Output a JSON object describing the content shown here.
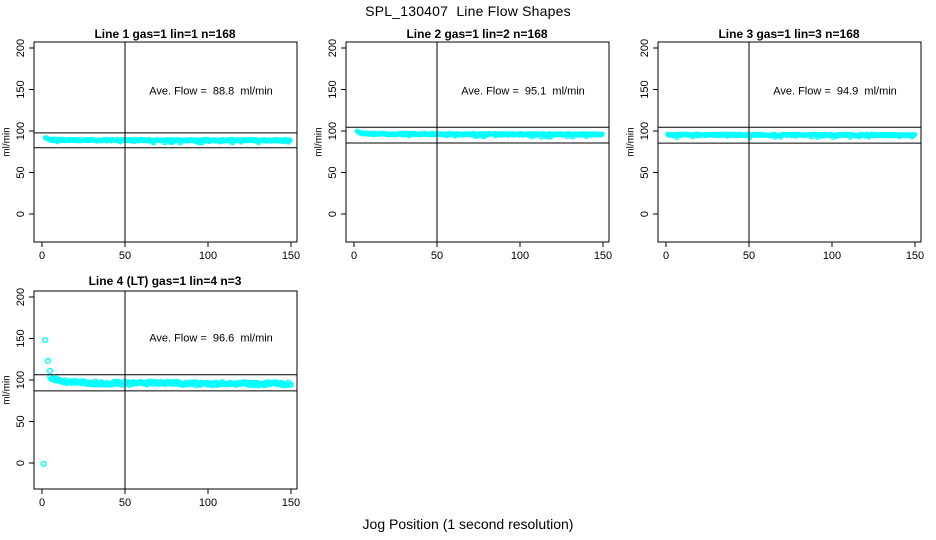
{
  "figure": {
    "title": "SPL_130407  Line Flow Shapes",
    "xlabel": "Jog Position (1 second resolution)",
    "background_color": "#FFFFFF",
    "axis_color": "#000000",
    "point_color": "#00FFFF"
  },
  "chart_data": [
    {
      "type": "scatter",
      "title": "Line 1 gas=1 lin=1 n=168",
      "annotation": "Ave. Flow =  88.8  ml/min",
      "avg_flow_ml_min": 88.8,
      "n_jogs": 168,
      "ylabel": "ml/min",
      "xlabel": "",
      "xticks": [
        0,
        50,
        100,
        150
      ],
      "yticks": [
        0,
        50,
        100,
        150,
        200
      ],
      "xlim": [
        -5,
        154
      ],
      "ylim": [
        -32,
        208
      ],
      "grid": false,
      "legend": "none",
      "marker": "open-circle",
      "ref_hlines": [
        97.7,
        79.9
      ],
      "ref_vline": 50,
      "series": {
        "name": "flow-samples",
        "x_start": 2,
        "x_end": 150,
        "x_step": 0.4,
        "profile": [
          [
            2,
            92.5
          ],
          [
            3,
            91.0
          ],
          [
            5,
            89.8
          ],
          [
            10,
            89.2
          ],
          [
            30,
            88.9
          ],
          [
            150,
            88.7
          ]
        ],
        "jitter": 1.1,
        "marker_r": 1.8,
        "seed": 101,
        "low_tick_rate": 0.04,
        "low_tick_drop": 2.5,
        "outliers": []
      }
    },
    {
      "type": "scatter",
      "title": "Line 2 gas=1 lin=2 n=168",
      "annotation": "Ave. Flow =  95.1  ml/min",
      "avg_flow_ml_min": 95.1,
      "n_jogs": 168,
      "ylabel": "ml/min",
      "xlabel": "",
      "xticks": [
        0,
        50,
        100,
        150
      ],
      "yticks": [
        0,
        50,
        100,
        150,
        200
      ],
      "xlim": [
        -5,
        154
      ],
      "ylim": [
        -32,
        208
      ],
      "grid": false,
      "legend": "none",
      "marker": "open-circle",
      "ref_hlines": [
        104.6,
        85.6
      ],
      "ref_vline": 50,
      "series": {
        "name": "flow-samples",
        "x_start": 2,
        "x_end": 150,
        "x_step": 0.4,
        "profile": [
          [
            2,
            100.5
          ],
          [
            3,
            98.5
          ],
          [
            5,
            97.2
          ],
          [
            12,
            96.3
          ],
          [
            150,
            95.8
          ]
        ],
        "jitter": 1.1,
        "marker_r": 1.8,
        "seed": 202,
        "low_tick_rate": 0.04,
        "low_tick_drop": 2.5,
        "outliers": []
      }
    },
    {
      "type": "scatter",
      "title": "Line 3 gas=1 lin=3 n=168",
      "annotation": "Ave. Flow =  94.9  ml/min",
      "avg_flow_ml_min": 94.9,
      "n_jogs": 168,
      "ylabel": "ml/min",
      "xlabel": "",
      "xticks": [
        0,
        50,
        100,
        150
      ],
      "yticks": [
        0,
        50,
        100,
        150,
        200
      ],
      "xlim": [
        -5,
        154
      ],
      "ylim": [
        -32,
        208
      ],
      "grid": false,
      "legend": "none",
      "marker": "open-circle",
      "ref_hlines": [
        104.4,
        85.4
      ],
      "ref_vline": 50,
      "series": {
        "name": "flow-samples",
        "x_start": 1,
        "x_end": 150,
        "x_step": 0.4,
        "profile": [
          [
            1,
            95.4
          ],
          [
            150,
            95.0
          ]
        ],
        "jitter": 1.0,
        "marker_r": 1.8,
        "seed": 303,
        "low_tick_rate": 0.05,
        "low_tick_drop": 2.5,
        "outliers": []
      }
    },
    {
      "type": "scatter",
      "title": "Line 4 (LT) gas=1 lin=4 n=3",
      "annotation": "Ave. Flow =  96.6  ml/min",
      "avg_flow_ml_min": 96.6,
      "n_jogs": 3,
      "ylabel": "ml/min",
      "xlabel": "",
      "xticks": [
        0,
        50,
        100,
        150
      ],
      "yticks": [
        0,
        50,
        100,
        150,
        200
      ],
      "xlim": [
        -5,
        154
      ],
      "ylim": [
        -32,
        208
      ],
      "grid": false,
      "legend": "none",
      "marker": "open-circle",
      "ref_hlines": [
        106.3,
        86.9
      ],
      "ref_vline": 50,
      "series": {
        "name": "flow-samples",
        "x_start": 5,
        "x_end": 150,
        "x_step": 0.7,
        "profile": [
          [
            5,
            104.0
          ],
          [
            6,
            102.0
          ],
          [
            8,
            100.2
          ],
          [
            12,
            98.3
          ],
          [
            18,
            97.2
          ],
          [
            30,
            96.3
          ],
          [
            150,
            95.3
          ]
        ],
        "jitter": 1.9,
        "marker_r": 2.4,
        "seed": 404,
        "low_tick_rate": 0,
        "low_tick_drop": 0,
        "outliers": [
          [
            1,
            -1
          ],
          [
            2,
            148
          ],
          [
            3.5,
            123
          ],
          [
            4.8,
            111
          ]
        ]
      }
    }
  ]
}
